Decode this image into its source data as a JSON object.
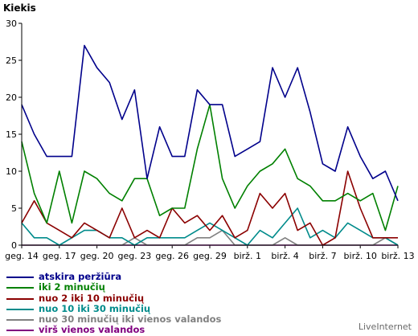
{
  "chart_data": {
    "type": "line",
    "ylabel": "Kiekis",
    "ylim": [
      0,
      30
    ],
    "yticks": [
      0,
      5,
      10,
      15,
      20,
      25,
      30
    ],
    "grid": false,
    "legend_position": "bottom-left",
    "x_tick_labels": [
      "geg. 14",
      "geg. 17",
      "geg. 20",
      "geg. 23",
      "geg. 26",
      "geg. 29",
      "birž. 1",
      "birž. 4",
      "birž. 7",
      "birž. 10",
      "birž. 13"
    ],
    "x_tick_every": 3,
    "num_points": 31,
    "series": [
      {
        "name": "atskira peržiūra",
        "color": "#00008b",
        "values": [
          19,
          15,
          12,
          12,
          12,
          27,
          24,
          22,
          17,
          21,
          9,
          16,
          12,
          12,
          21,
          19,
          19,
          12,
          13,
          14,
          24,
          20,
          24,
          18,
          11,
          10,
          16,
          12,
          9,
          10,
          6
        ]
      },
      {
        "name": "iki 2 minučių",
        "color": "#008000",
        "values": [
          14,
          7,
          3,
          10,
          3,
          10,
          9,
          7,
          6,
          9,
          9,
          4,
          5,
          5,
          13,
          19,
          9,
          5,
          8,
          10,
          11,
          13,
          9,
          8,
          6,
          6,
          7,
          6,
          7,
          2,
          8
        ]
      },
      {
        "name": "nuo 2 iki 10 minučių",
        "color": "#8b0000",
        "values": [
          3,
          6,
          3,
          2,
          1,
          3,
          2,
          1,
          5,
          1,
          2,
          1,
          5,
          3,
          4,
          2,
          4,
          1,
          2,
          7,
          5,
          7,
          2,
          3,
          0,
          1,
          10,
          5,
          1,
          1,
          1
        ]
      },
      {
        "name": "nuo 10 iki 30 minučių",
        "color": "#008b8b",
        "values": [
          3,
          1,
          1,
          0,
          1,
          2,
          2,
          1,
          1,
          0,
          1,
          1,
          1,
          1,
          2,
          3,
          2,
          1,
          0,
          2,
          1,
          3,
          5,
          1,
          2,
          1,
          3,
          2,
          1,
          1,
          0
        ]
      },
      {
        "name": "nuo 30 minučių iki vienos valandos",
        "color": "#808080",
        "values": [
          0,
          0,
          0,
          0,
          0,
          0,
          0,
          0,
          0,
          1,
          0,
          0,
          0,
          0,
          1,
          1,
          2,
          0,
          0,
          0,
          0,
          1,
          0,
          0,
          0,
          0,
          0,
          0,
          0,
          1,
          0
        ]
      },
      {
        "name": "virš vienos valandos",
        "color": "#800080",
        "values": [
          0,
          0,
          0,
          0,
          0,
          0,
          0,
          0,
          0,
          0,
          0,
          0,
          0,
          0,
          0,
          0,
          0,
          0,
          0,
          0,
          0,
          0,
          0,
          0,
          0,
          0,
          0,
          0,
          0,
          0,
          0
        ]
      }
    ]
  },
  "watermark": "LiveInternet"
}
